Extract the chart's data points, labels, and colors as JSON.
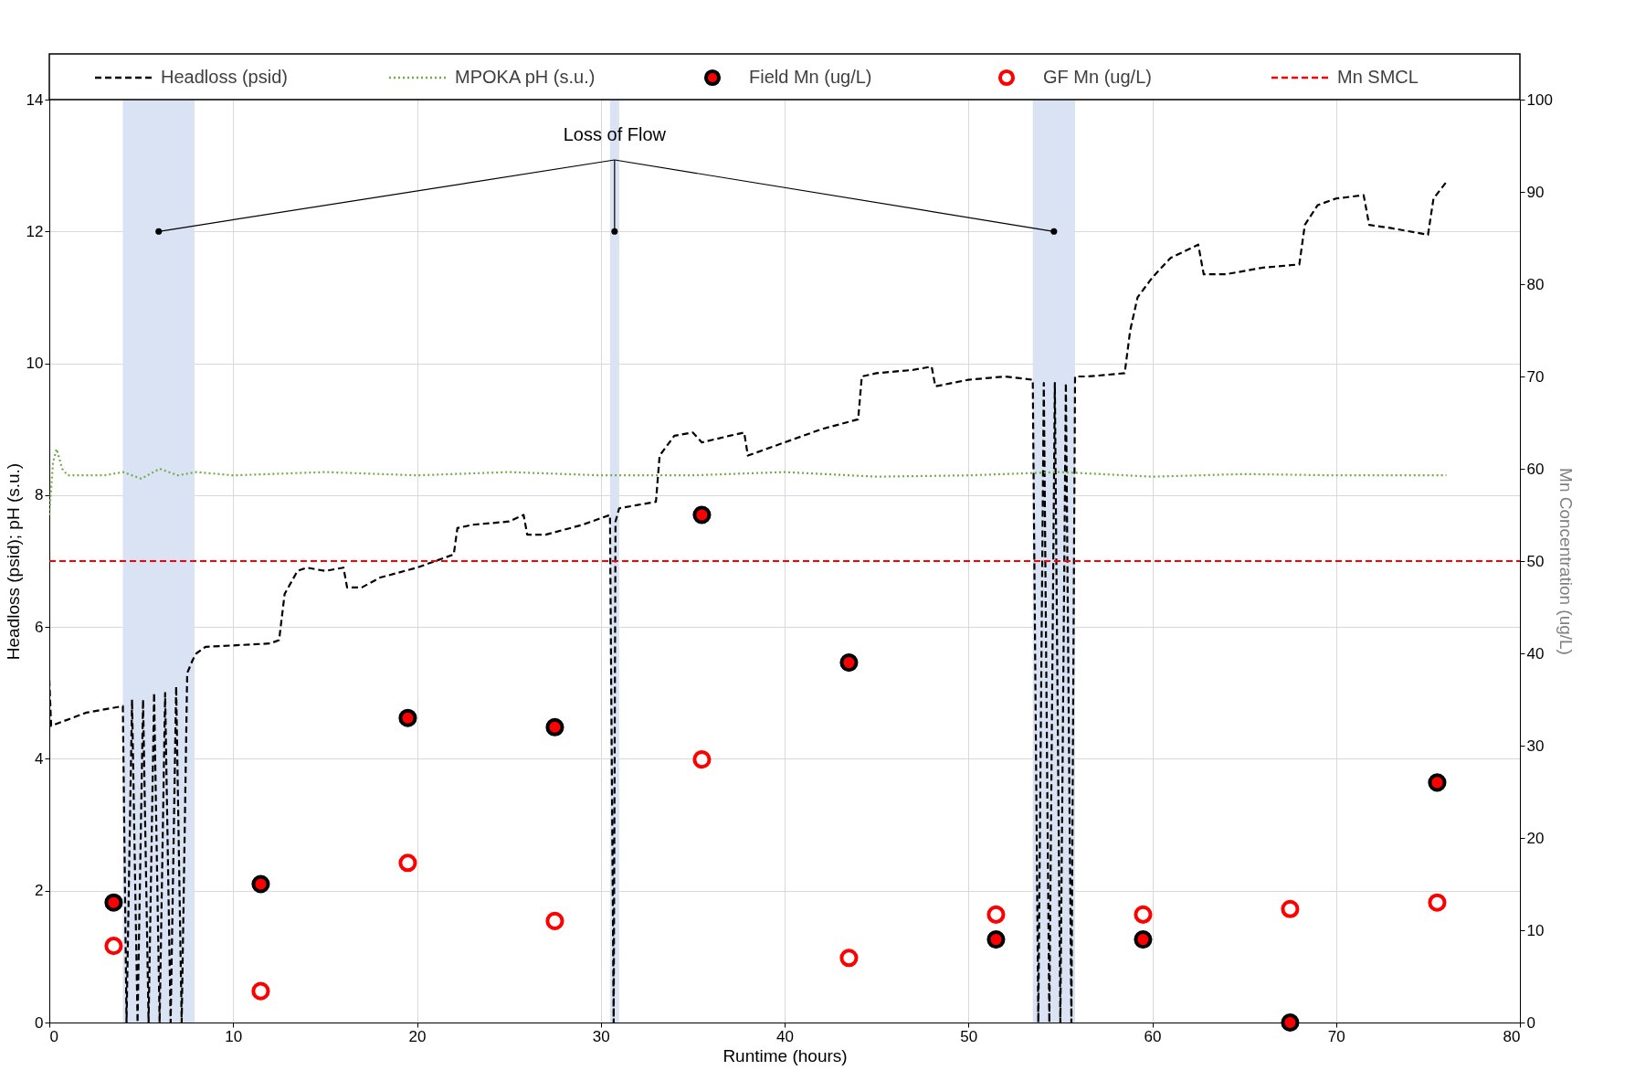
{
  "chart_data": {
    "type": "line",
    "xlabel": "Runtime (hours)",
    "ylabel": "Headloss (psid); pH (s.u.)",
    "y2label": "Mn Concentration (ug/L)",
    "xlim": [
      0,
      80
    ],
    "xticks": [
      0,
      10,
      20,
      30,
      40,
      50,
      60,
      70,
      80
    ],
    "ylim": [
      0,
      14
    ],
    "yticks": [
      0,
      2,
      4,
      6,
      8,
      10,
      12,
      14
    ],
    "y2lim": [
      0,
      100
    ],
    "y2ticks": [
      0,
      10,
      20,
      30,
      40,
      50,
      60,
      70,
      80,
      90,
      100
    ],
    "grid": true,
    "legend": "top",
    "annotations": [
      {
        "text": "Loss of Flow",
        "x": 30.75,
        "y": 12
      }
    ],
    "bands": [
      {
        "axis": "x",
        "from": 4,
        "to": 7.9,
        "color": "#dae3f3"
      },
      {
        "axis": "x",
        "from": 30.5,
        "to": 31,
        "color": "#dae3f3"
      },
      {
        "axis": "x",
        "from": 53.5,
        "to": 55.8,
        "color": "#dae3f3"
      }
    ],
    "ref_lines": [
      {
        "axis": "y2",
        "value": 50,
        "label": "Mn SMCL",
        "color": "#ff0000",
        "line_style": "dashed"
      }
    ],
    "series": [
      {
        "name": "Headloss (psid)",
        "color": "#000000",
        "line_style": "dashed",
        "x": [
          0,
          0.1,
          2,
          4,
          4.2,
          4.5,
          4.8,
          5.1,
          5.4,
          5.7,
          6,
          6.3,
          6.6,
          6.9,
          7.2,
          7.5,
          7.8,
          8,
          8.5,
          10,
          12,
          12.5,
          12.8,
          13.5,
          14,
          15,
          16,
          16.2,
          17,
          18,
          20,
          21,
          22,
          22.2,
          23,
          25,
          25.8,
          26,
          27,
          29,
          30.5,
          30.7,
          30.8,
          31,
          32,
          33,
          33.2,
          34,
          35,
          35.5,
          37,
          37.8,
          38,
          40,
          42,
          44,
          44.2,
          45,
          47,
          48,
          48.2,
          50,
          52,
          53.5,
          53.8,
          54.1,
          54.4,
          54.7,
          55,
          55.3,
          55.6,
          55.8,
          56.5,
          58.5,
          58.8,
          59.2,
          60,
          61,
          62.5,
          62.8,
          64,
          66,
          68,
          68.3,
          69,
          70,
          71.5,
          71.8,
          73,
          74,
          75,
          75.3,
          76
        ],
        "values": [
          5.2,
          4.5,
          4.7,
          4.8,
          0,
          4.9,
          0,
          4.9,
          0,
          5.0,
          0,
          5.0,
          0,
          5.1,
          0,
          5.3,
          5.5,
          5.6,
          5.7,
          5.72,
          5.75,
          5.8,
          6.5,
          6.85,
          6.9,
          6.85,
          6.9,
          6.6,
          6.6,
          6.75,
          6.9,
          7.0,
          7.1,
          7.5,
          7.55,
          7.6,
          7.7,
          7.4,
          7.4,
          7.55,
          7.7,
          0,
          7.6,
          7.8,
          7.85,
          7.9,
          8.6,
          8.9,
          8.95,
          8.8,
          8.9,
          8.95,
          8.6,
          8.8,
          9.0,
          9.15,
          9.8,
          9.85,
          9.9,
          9.95,
          9.65,
          9.75,
          9.8,
          9.75,
          0,
          9.7,
          0,
          9.7,
          0,
          9.7,
          0,
          9.8,
          9.8,
          9.85,
          10.5,
          11.0,
          11.3,
          11.6,
          11.8,
          11.35,
          11.35,
          11.45,
          11.5,
          12.1,
          12.4,
          12.5,
          12.55,
          12.1,
          12.05,
          12.0,
          11.95,
          12.5,
          12.75
        ]
      },
      {
        "name": "MPOKA pH (s.u.)",
        "color": "#70ad47",
        "line_style": "dotted",
        "x": [
          0,
          0.2,
          0.4,
          0.7,
          1,
          3,
          4,
          5,
          6,
          7,
          8,
          10,
          15,
          20,
          25,
          30,
          35,
          40,
          45,
          50,
          55,
          60,
          65,
          70,
          75,
          76
        ],
        "values": [
          7.7,
          8.5,
          8.7,
          8.4,
          8.3,
          8.3,
          8.35,
          8.25,
          8.4,
          8.3,
          8.35,
          8.3,
          8.35,
          8.3,
          8.35,
          8.3,
          8.3,
          8.35,
          8.28,
          8.3,
          8.35,
          8.28,
          8.32,
          8.3,
          8.3,
          8.3
        ]
      },
      {
        "name": "Field Mn (ug/L)",
        "type": "scatter",
        "axis": "y2",
        "marker": "circle",
        "color": "#ff0000",
        "x": [
          3.5,
          11.5,
          19.5,
          27.5,
          35.5,
          43.5,
          51.5,
          59.5,
          67.5,
          75.5
        ],
        "values": [
          13,
          15,
          33,
          32,
          55,
          39,
          9,
          9,
          0,
          26
        ]
      },
      {
        "name": "GF Mn (ug/L)",
        "type": "scatter",
        "axis": "y2",
        "marker": "circle",
        "color": "#ff0000",
        "x": [
          3.5,
          11.5,
          19.5,
          27.5,
          35.5,
          43.5,
          51.5,
          59.5,
          67.5,
          75.5
        ],
        "values": [
          8.3,
          3.4,
          17.3,
          11,
          28.5,
          7,
          11.7,
          11.7,
          12.3,
          13
        ]
      }
    ]
  }
}
